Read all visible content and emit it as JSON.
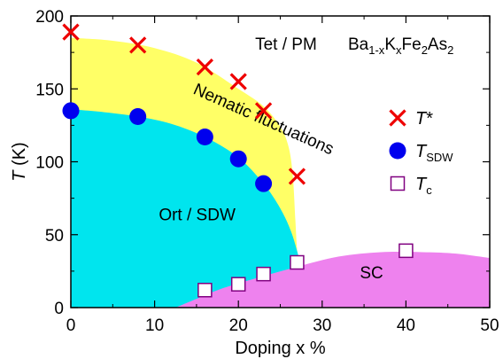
{
  "chart_data": {
    "type": "scatter",
    "formula": {
      "parts": [
        {
          "text": "Ba",
          "shift": "none"
        },
        {
          "text": "1-x",
          "shift": "sub"
        },
        {
          "text": "K",
          "shift": "none"
        },
        {
          "text": "x",
          "shift": "sub"
        },
        {
          "text": "Fe",
          "shift": "none"
        },
        {
          "text": "2",
          "shift": "sub"
        },
        {
          "text": "As",
          "shift": "none"
        },
        {
          "text": "2",
          "shift": "sub"
        }
      ]
    },
    "xlabel": "Doping x %",
    "ylabel": "T (K)",
    "xlim": [
      0,
      50
    ],
    "ylim": [
      0,
      200
    ],
    "x_ticks": [
      0,
      10,
      20,
      30,
      40,
      50
    ],
    "y_ticks": [
      0,
      50,
      100,
      150,
      200
    ],
    "grid": false,
    "legend_position": "right",
    "regions": [
      {
        "name": "nematic",
        "label": "Nematic fluctuations",
        "color": "#ffff66",
        "label_x": 14.5,
        "label_y": 147,
        "label_angle": 24,
        "boundary": [
          [
            0,
            185
          ],
          [
            5,
            183
          ],
          [
            10,
            178
          ],
          [
            15,
            168
          ],
          [
            20,
            150
          ],
          [
            23,
            138
          ],
          [
            25,
            124
          ],
          [
            26,
            110
          ],
          [
            26.5,
            90
          ],
          [
            26.8,
            60
          ],
          [
            27,
            40
          ],
          [
            27.2,
            35
          ],
          [
            27.2,
            0
          ],
          [
            0,
            0
          ]
        ]
      },
      {
        "name": "ort-sdw",
        "label": "Ort / SDW",
        "color": "#00e5ee",
        "label_x": 10.5,
        "label_y": 60,
        "boundary": [
          [
            0,
            136
          ],
          [
            4,
            134
          ],
          [
            8,
            131
          ],
          [
            12,
            126
          ],
          [
            16,
            117
          ],
          [
            20,
            103
          ],
          [
            23,
            85
          ],
          [
            25,
            68
          ],
          [
            26.3,
            52
          ],
          [
            27.2,
            35
          ],
          [
            27.2,
            0
          ],
          [
            0,
            0
          ]
        ]
      },
      {
        "name": "sc",
        "label": "SC",
        "color": "#ee82ee",
        "label_x": 34.5,
        "label_y": 20,
        "boundary": [
          [
            12.5,
            0
          ],
          [
            15,
            6
          ],
          [
            18,
            13
          ],
          [
            22,
            20
          ],
          [
            27,
            28
          ],
          [
            32,
            35
          ],
          [
            37,
            38
          ],
          [
            42,
            38
          ],
          [
            46,
            37
          ],
          [
            50,
            34
          ],
          [
            50,
            0
          ]
        ]
      },
      {
        "name": "tet-pm",
        "label": "Tet / PM",
        "label_x": 22,
        "label_y": 177
      }
    ],
    "series": [
      {
        "name": "T*",
        "marker": "x",
        "color": "#ee0000",
        "points": [
          [
            0,
            189
          ],
          [
            8,
            180
          ],
          [
            16,
            165
          ],
          [
            20,
            155
          ],
          [
            23,
            135
          ],
          [
            27,
            90
          ]
        ]
      },
      {
        "name": "T_SDW",
        "marker": "circle",
        "color": "#0000ee",
        "points": [
          [
            0,
            135
          ],
          [
            8,
            131
          ],
          [
            16,
            117
          ],
          [
            20,
            102
          ],
          [
            23,
            85
          ]
        ]
      },
      {
        "name": "T_c",
        "marker": "square",
        "color": "#800080",
        "points": [
          [
            16,
            12
          ],
          [
            20,
            16
          ],
          [
            23,
            23
          ],
          [
            27,
            31
          ],
          [
            40,
            39
          ]
        ]
      }
    ],
    "legend": [
      {
        "marker": "x",
        "symbol": "T",
        "suffix": "*",
        "suffix_shift": "none"
      },
      {
        "marker": "circle",
        "symbol": "T",
        "suffix": "SDW",
        "suffix_shift": "sub"
      },
      {
        "marker": "square",
        "symbol": "T",
        "suffix": "c",
        "suffix_shift": "sub"
      }
    ]
  }
}
